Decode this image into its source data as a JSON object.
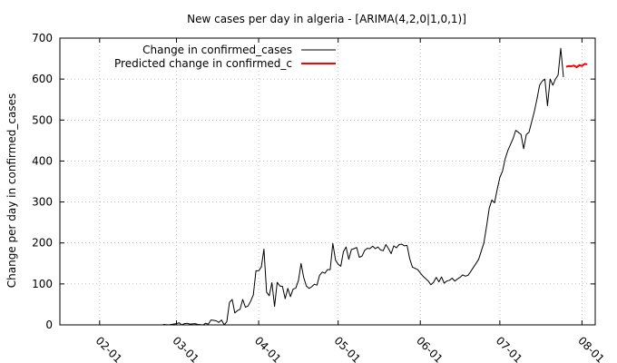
{
  "chart_data": {
    "type": "line",
    "title": "New cases per day in algeria -  [ARIMA(4,2,0|1,0,1)]",
    "xlabel": "",
    "ylabel": "Change per day in confirmed_cases",
    "x_ticks": [
      "02-01",
      "03-01",
      "04-01",
      "05-01",
      "06-01",
      "07-01",
      "08-01"
    ],
    "x_tick_dates": [
      "2020-02-01",
      "2020-03-01",
      "2020-04-01",
      "2020-05-01",
      "2020-06-01",
      "2020-07-01",
      "2020-08-01"
    ],
    "xlim": [
      "2020-01-17",
      "2020-08-06"
    ],
    "ylim": [
      0,
      700
    ],
    "y_ticks": [
      0,
      100,
      200,
      300,
      400,
      500,
      600,
      700
    ],
    "grid": true,
    "legend_position": "top-left",
    "series": [
      {
        "name": "Change in confirmed_cases",
        "color": "#000000",
        "points": [
          [
            "2020-02-25",
            1
          ],
          [
            "2020-02-27",
            0
          ],
          [
            "2020-03-01",
            3
          ],
          [
            "2020-03-02",
            5
          ],
          [
            "2020-03-03",
            0
          ],
          [
            "2020-03-04",
            3
          ],
          [
            "2020-03-05",
            4
          ],
          [
            "2020-03-06",
            2
          ],
          [
            "2020-03-08",
            3
          ],
          [
            "2020-03-09",
            1
          ],
          [
            "2020-03-11",
            0
          ],
          [
            "2020-03-12",
            4
          ],
          [
            "2020-03-13",
            2
          ],
          [
            "2020-03-14",
            12
          ],
          [
            "2020-03-15",
            11
          ],
          [
            "2020-03-16",
            10
          ],
          [
            "2020-03-17",
            6
          ],
          [
            "2020-03-18",
            12
          ],
          [
            "2020-03-19",
            0
          ],
          [
            "2020-03-20",
            8
          ],
          [
            "2020-03-21",
            55
          ],
          [
            "2020-03-22",
            62
          ],
          [
            "2020-03-23",
            29
          ],
          [
            "2020-03-24",
            35
          ],
          [
            "2020-03-25",
            38
          ],
          [
            "2020-03-26",
            62
          ],
          [
            "2020-03-27",
            43
          ],
          [
            "2020-03-28",
            46
          ],
          [
            "2020-03-29",
            58
          ],
          [
            "2020-03-30",
            73
          ],
          [
            "2020-03-31",
            132
          ],
          [
            "2020-04-01",
            132
          ],
          [
            "2020-04-02",
            141
          ],
          [
            "2020-04-03",
            185
          ],
          [
            "2020-04-04",
            80
          ],
          [
            "2020-04-05",
            71
          ],
          [
            "2020-04-06",
            103
          ],
          [
            "2020-04-07",
            45
          ],
          [
            "2020-04-08",
            104
          ],
          [
            "2020-04-09",
            95
          ],
          [
            "2020-04-10",
            94
          ],
          [
            "2020-04-11",
            64
          ],
          [
            "2020-04-12",
            89
          ],
          [
            "2020-04-13",
            69
          ],
          [
            "2020-04-14",
            87
          ],
          [
            "2020-04-15",
            90
          ],
          [
            "2020-04-16",
            108
          ],
          [
            "2020-04-17",
            150
          ],
          [
            "2020-04-18",
            116
          ],
          [
            "2020-04-19",
            95
          ],
          [
            "2020-04-20",
            89
          ],
          [
            "2020-04-21",
            93
          ],
          [
            "2020-04-22",
            99
          ],
          [
            "2020-04-23",
            97
          ],
          [
            "2020-04-24",
            121
          ],
          [
            "2020-04-25",
            129
          ],
          [
            "2020-04-26",
            126
          ],
          [
            "2020-04-27",
            135
          ],
          [
            "2020-04-28",
            135
          ],
          [
            "2020-04-29",
            199
          ],
          [
            "2020-04-30",
            158
          ],
          [
            "2020-05-01",
            148
          ],
          [
            "2020-05-02",
            143
          ],
          [
            "2020-05-03",
            179
          ],
          [
            "2020-05-04",
            190
          ],
          [
            "2020-05-05",
            160
          ],
          [
            "2020-05-06",
            184
          ],
          [
            "2020-05-07",
            186
          ],
          [
            "2020-05-08",
            189
          ],
          [
            "2020-05-09",
            165
          ],
          [
            "2020-05-10",
            168
          ],
          [
            "2020-05-11",
            182
          ],
          [
            "2020-05-12",
            187
          ],
          [
            "2020-05-13",
            186
          ],
          [
            "2020-05-14",
            192
          ],
          [
            "2020-05-15",
            186
          ],
          [
            "2020-05-16",
            190
          ],
          [
            "2020-05-17",
            183
          ],
          [
            "2020-05-18",
            181
          ],
          [
            "2020-05-19",
            196
          ],
          [
            "2020-05-20",
            186
          ],
          [
            "2020-05-21",
            174
          ],
          [
            "2020-05-22",
            193
          ],
          [
            "2020-05-23",
            188
          ],
          [
            "2020-05-24",
            196
          ],
          [
            "2020-05-25",
            197
          ],
          [
            "2020-05-26",
            193
          ],
          [
            "2020-05-27",
            194
          ],
          [
            "2020-05-28",
            162
          ],
          [
            "2020-05-29",
            141
          ],
          [
            "2020-05-30",
            138
          ],
          [
            "2020-05-31",
            135
          ],
          [
            "2020-06-01",
            127
          ],
          [
            "2020-06-02",
            119
          ],
          [
            "2020-06-03",
            113
          ],
          [
            "2020-06-04",
            107
          ],
          [
            "2020-06-05",
            98
          ],
          [
            "2020-06-06",
            104
          ],
          [
            "2020-06-07",
            116
          ],
          [
            "2020-06-08",
            105
          ],
          [
            "2020-06-09",
            117
          ],
          [
            "2020-06-10",
            102
          ],
          [
            "2020-06-11",
            107
          ],
          [
            "2020-06-12",
            109
          ],
          [
            "2020-06-13",
            114
          ],
          [
            "2020-06-14",
            107
          ],
          [
            "2020-06-15",
            112
          ],
          [
            "2020-06-16",
            116
          ],
          [
            "2020-06-17",
            122
          ],
          [
            "2020-06-18",
            119
          ],
          [
            "2020-06-19",
            121
          ],
          [
            "2020-06-20",
            130
          ],
          [
            "2020-06-21",
            140
          ],
          [
            "2020-06-22",
            150
          ],
          [
            "2020-06-23",
            160
          ],
          [
            "2020-06-24",
            180
          ],
          [
            "2020-06-25",
            200
          ],
          [
            "2020-06-26",
            240
          ],
          [
            "2020-06-27",
            285
          ],
          [
            "2020-06-28",
            305
          ],
          [
            "2020-06-29",
            298
          ],
          [
            "2020-06-30",
            330
          ],
          [
            "2020-07-01",
            360
          ],
          [
            "2020-07-02",
            375
          ],
          [
            "2020-07-03",
            405
          ],
          [
            "2020-07-04",
            425
          ],
          [
            "2020-07-05",
            440
          ],
          [
            "2020-07-06",
            455
          ],
          [
            "2020-07-07",
            475
          ],
          [
            "2020-07-08",
            470
          ],
          [
            "2020-07-09",
            465
          ],
          [
            "2020-07-10",
            430
          ],
          [
            "2020-07-11",
            465
          ],
          [
            "2020-07-12",
            470
          ],
          [
            "2020-07-13",
            495
          ],
          [
            "2020-07-14",
            520
          ],
          [
            "2020-07-15",
            550
          ],
          [
            "2020-07-16",
            585
          ],
          [
            "2020-07-17",
            595
          ],
          [
            "2020-07-18",
            600
          ],
          [
            "2020-07-19",
            535
          ],
          [
            "2020-07-20",
            600
          ],
          [
            "2020-07-21",
            585
          ],
          [
            "2020-07-22",
            600
          ],
          [
            "2020-07-23",
            610
          ],
          [
            "2020-07-24",
            675
          ],
          [
            "2020-07-25",
            605
          ]
        ]
      },
      {
        "name": "Predicted change in confirmed_c",
        "color": "#ff0000",
        "points": [
          [
            "2020-07-26",
            630
          ],
          [
            "2020-07-27",
            632
          ],
          [
            "2020-07-28",
            631
          ],
          [
            "2020-07-29",
            633
          ],
          [
            "2020-07-30",
            629
          ],
          [
            "2020-07-31",
            634
          ],
          [
            "2020-08-01",
            632
          ],
          [
            "2020-08-02",
            637
          ],
          [
            "2020-08-03",
            636
          ]
        ]
      }
    ]
  }
}
